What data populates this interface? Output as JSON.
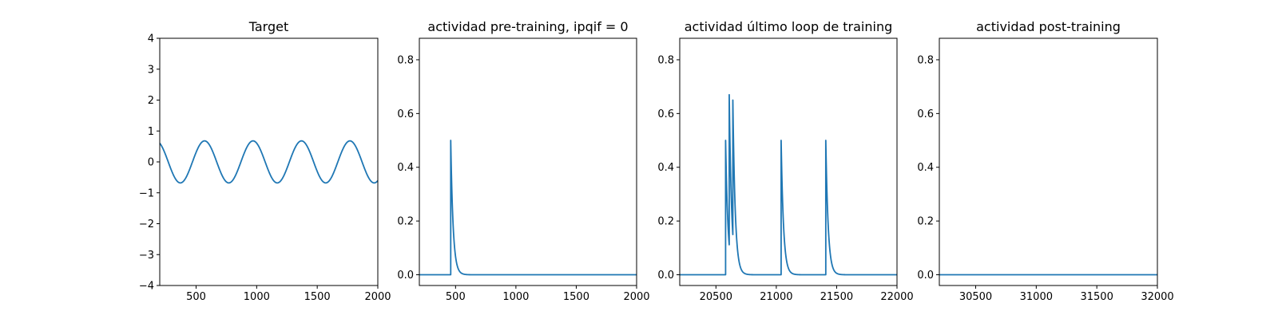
{
  "colors": {
    "series": "#1f77b4",
    "background": "#ffffff",
    "axis": "#000000"
  },
  "chart_data": [
    {
      "type": "line",
      "title": "Target",
      "xlabel": "",
      "ylabel": "",
      "grid": false,
      "xlim": [
        200,
        2000
      ],
      "ylim": [
        -4,
        4
      ],
      "xticks": [
        500,
        1000,
        1500,
        2000
      ],
      "yticks": [
        -4,
        -3,
        -2,
        -1,
        0,
        1,
        2,
        3,
        4
      ],
      "yticklabels": [
        "−4",
        "−3",
        "−2",
        "−1",
        "0",
        "1",
        "2",
        "3",
        "4"
      ],
      "series": [
        {
          "function": "sine",
          "amplitude": 0.68,
          "period": 400,
          "peak_x": 570,
          "x_range": [
            200,
            2000
          ]
        }
      ]
    },
    {
      "type": "line",
      "title": "actividad pre-training, ipqif = 0",
      "xlabel": "",
      "ylabel": "",
      "grid": false,
      "xlim": [
        200,
        2000
      ],
      "ylim": [
        -0.04,
        0.88
      ],
      "xticks": [
        500,
        1000,
        1500,
        2000
      ],
      "yticks": [
        0,
        0.2,
        0.4,
        0.6,
        0.8
      ],
      "yticklabels": [
        "0.0",
        "0.2",
        "0.4",
        "0.6",
        "0.8"
      ],
      "series": [
        {
          "baseline": 0,
          "x_range": [
            200,
            2000
          ],
          "spikes": [
            {
              "x": 460,
              "peak": 0.5,
              "decay": 20
            }
          ]
        }
      ]
    },
    {
      "type": "line",
      "title": "actividad último loop de training",
      "xlabel": "",
      "ylabel": "",
      "grid": false,
      "xlim": [
        20200,
        22000
      ],
      "ylim": [
        -0.04,
        0.88
      ],
      "xticks": [
        20500,
        21000,
        21500,
        22000
      ],
      "yticks": [
        0,
        0.2,
        0.4,
        0.6,
        0.8
      ],
      "yticklabels": [
        "0.0",
        "0.2",
        "0.4",
        "0.6",
        "0.8"
      ],
      "series": [
        {
          "baseline": 0,
          "x_range": [
            20200,
            22000
          ],
          "spikes": [
            {
              "x": 20580,
              "peak": 0.5,
              "decay": 20
            },
            {
              "x": 20610,
              "peak": 0.67,
              "decay": 20
            },
            {
              "x": 20640,
              "peak": 0.65,
              "decay": 20
            },
            {
              "x": 21040,
              "peak": 0.5,
              "decay": 20
            },
            {
              "x": 21410,
              "peak": 0.5,
              "decay": 20
            }
          ]
        }
      ]
    },
    {
      "type": "line",
      "title": "actividad post-training",
      "xlabel": "",
      "ylabel": "",
      "grid": false,
      "xlim": [
        30200,
        32000
      ],
      "ylim": [
        -0.04,
        0.88
      ],
      "xticks": [
        30500,
        31000,
        31500,
        32000
      ],
      "yticks": [
        0,
        0.2,
        0.4,
        0.6,
        0.8
      ],
      "yticklabels": [
        "0.0",
        "0.2",
        "0.4",
        "0.6",
        "0.8"
      ],
      "series": [
        {
          "baseline": 0,
          "x_range": [
            30200,
            32000
          ],
          "spikes": []
        }
      ]
    }
  ]
}
